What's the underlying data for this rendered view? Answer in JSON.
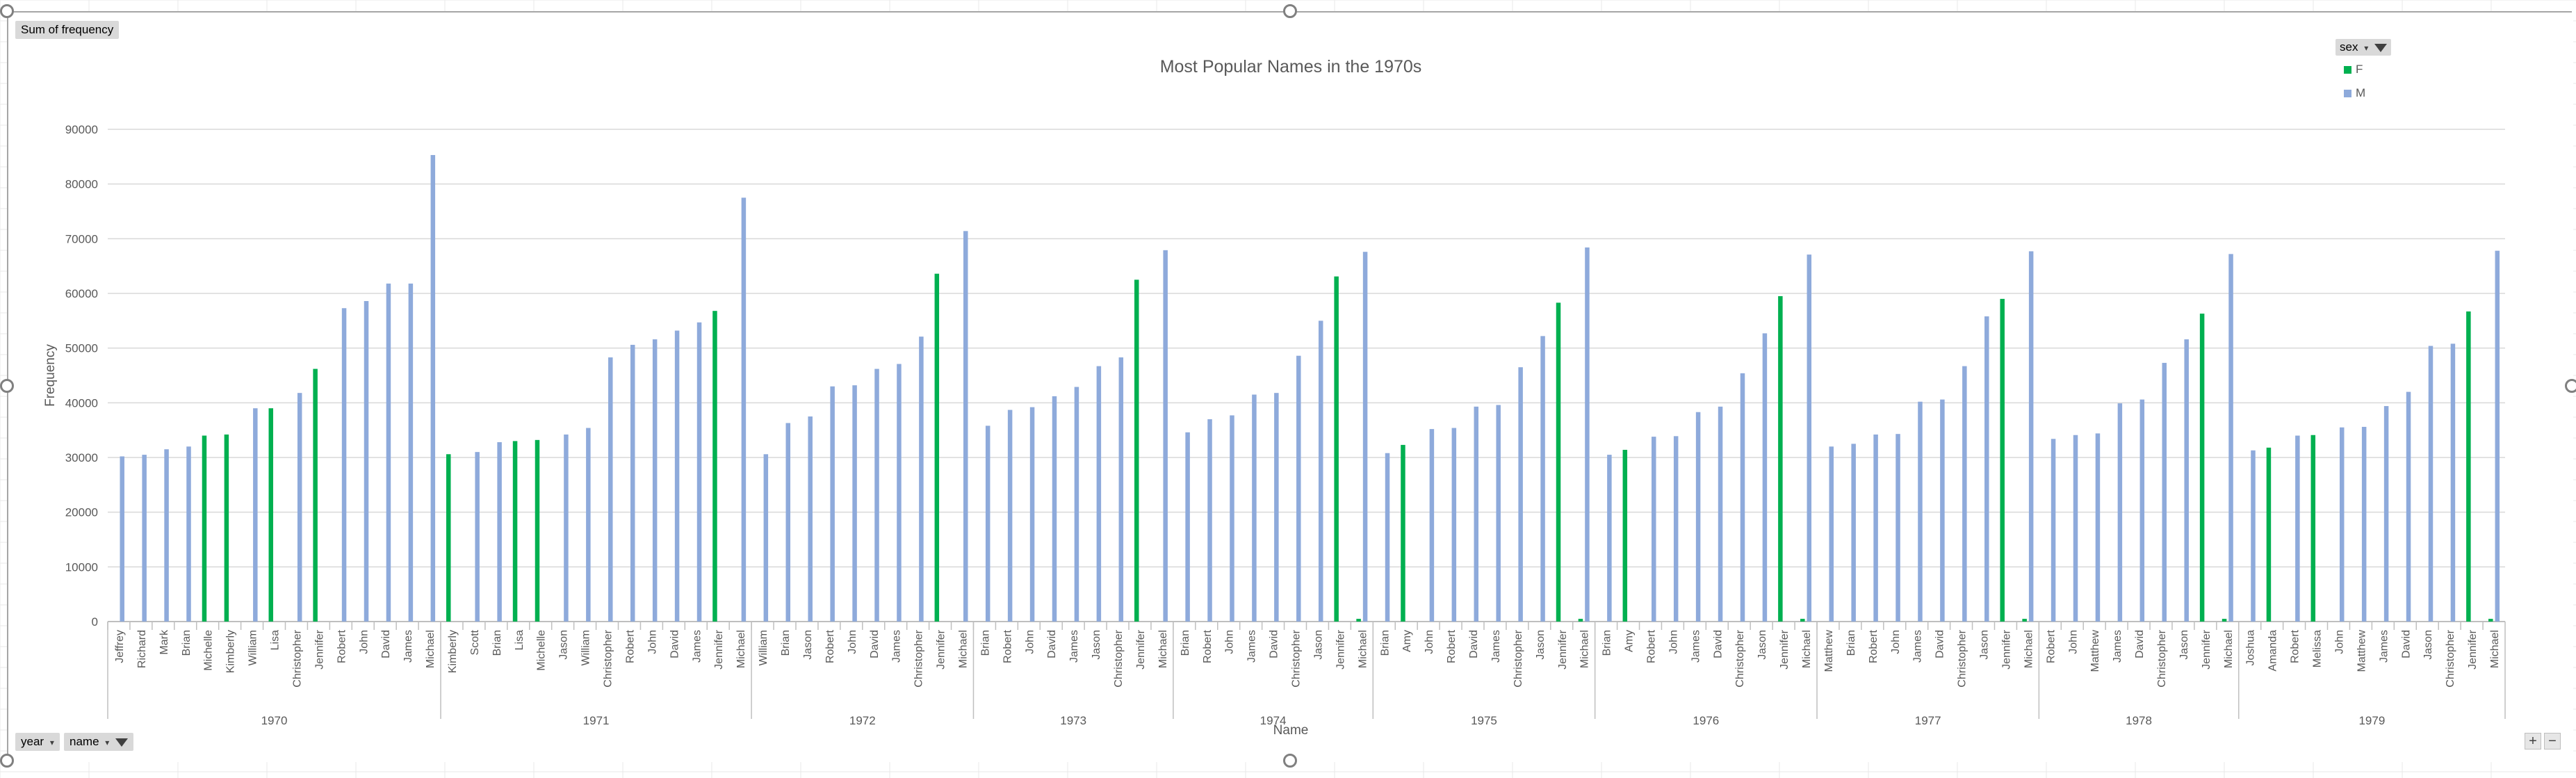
{
  "pivot": {
    "value_field": "Sum of frequency",
    "legend_field": "sex",
    "row_fields": [
      "year",
      "name"
    ]
  },
  "chart_data": {
    "type": "bar",
    "title": "Most Popular Names in the 1970s",
    "xlabel": "Name",
    "ylabel": "Frequency",
    "ylim": [
      0,
      90000
    ],
    "yticks": [
      0,
      10000,
      20000,
      30000,
      40000,
      50000,
      60000,
      70000,
      80000,
      90000
    ],
    "grid": true,
    "legend_position": "top-right",
    "series": [
      {
        "name": "F",
        "color": "#00b050"
      },
      {
        "name": "M",
        "color": "#8eaadb"
      }
    ],
    "groups": [
      {
        "year": "1970",
        "items": [
          {
            "name": "Jeffrey",
            "M": 30200
          },
          {
            "name": "Richard",
            "M": 30500
          },
          {
            "name": "Mark",
            "M": 31500
          },
          {
            "name": "Brian",
            "M": 32000
          },
          {
            "name": "Michelle",
            "F": 34000
          },
          {
            "name": "Kimberly",
            "F": 34200
          },
          {
            "name": "William",
            "M": 39000
          },
          {
            "name": "Lisa",
            "F": 39000
          },
          {
            "name": "Christopher",
            "M": 41800
          },
          {
            "name": "Jennifer",
            "F": 46200
          },
          {
            "name": "Robert",
            "M": 57300
          },
          {
            "name": "John",
            "M": 58600
          },
          {
            "name": "David",
            "M": 61800
          },
          {
            "name": "James",
            "M": 61800
          },
          {
            "name": "Michael",
            "M": 85300
          }
        ]
      },
      {
        "year": "1971",
        "items": [
          {
            "name": "Kimberly",
            "F": 30600
          },
          {
            "name": "Scott",
            "M": 31000
          },
          {
            "name": "Brian",
            "M": 32800
          },
          {
            "name": "Lisa",
            "F": 33000
          },
          {
            "name": "Michelle",
            "F": 33200
          },
          {
            "name": "Jason",
            "M": 34200
          },
          {
            "name": "William",
            "M": 35400
          },
          {
            "name": "Christopher",
            "M": 48300
          },
          {
            "name": "Robert",
            "M": 50600
          },
          {
            "name": "John",
            "M": 51600
          },
          {
            "name": "David",
            "M": 53200
          },
          {
            "name": "James",
            "M": 54700
          },
          {
            "name": "Jennifer",
            "F": 56800
          },
          {
            "name": "Michael",
            "M": 77500
          }
        ]
      },
      {
        "year": "1972",
        "items": [
          {
            "name": "William",
            "M": 30600
          },
          {
            "name": "Brian",
            "M": 36300
          },
          {
            "name": "Jason",
            "M": 37500
          },
          {
            "name": "Robert",
            "M": 43000
          },
          {
            "name": "John",
            "M": 43200
          },
          {
            "name": "David",
            "M": 46200
          },
          {
            "name": "James",
            "M": 47100
          },
          {
            "name": "Christopher",
            "M": 52100
          },
          {
            "name": "Jennifer",
            "F": 63600
          },
          {
            "name": "Michael",
            "M": 71400
          }
        ]
      },
      {
        "year": "1973",
        "items": [
          {
            "name": "Brian",
            "M": 35800
          },
          {
            "name": "Robert",
            "M": 38700
          },
          {
            "name": "John",
            "M": 39200
          },
          {
            "name": "David",
            "M": 41200
          },
          {
            "name": "James",
            "M": 42900
          },
          {
            "name": "Jason",
            "M": 46700
          },
          {
            "name": "Christopher",
            "M": 48300
          },
          {
            "name": "Jennifer",
            "F": 62500
          },
          {
            "name": "Michael",
            "M": 67900
          }
        ]
      },
      {
        "year": "1974",
        "items": [
          {
            "name": "Brian",
            "M": 34600
          },
          {
            "name": "Robert",
            "M": 37000
          },
          {
            "name": "John",
            "M": 37700
          },
          {
            "name": "James",
            "M": 41500
          },
          {
            "name": "David",
            "M": 41800
          },
          {
            "name": "Christopher",
            "M": 48600
          },
          {
            "name": "Jason",
            "M": 55000
          },
          {
            "name": "Jennifer",
            "F": 63100
          },
          {
            "name": "Michael",
            "M": 67600,
            "F": 500
          }
        ]
      },
      {
        "year": "1975",
        "items": [
          {
            "name": "Brian",
            "M": 30800
          },
          {
            "name": "Amy",
            "F": 32300
          },
          {
            "name": "John",
            "M": 35200
          },
          {
            "name": "Robert",
            "M": 35400
          },
          {
            "name": "David",
            "M": 39300
          },
          {
            "name": "James",
            "M": 39600
          },
          {
            "name": "Christopher",
            "M": 46500
          },
          {
            "name": "Jason",
            "M": 52200
          },
          {
            "name": "Jennifer",
            "F": 58300
          },
          {
            "name": "Michael",
            "M": 68400,
            "F": 500
          }
        ]
      },
      {
        "year": "1976",
        "items": [
          {
            "name": "Brian",
            "M": 30500
          },
          {
            "name": "Amy",
            "F": 31400
          },
          {
            "name": "Robert",
            "M": 33800
          },
          {
            "name": "John",
            "M": 33900
          },
          {
            "name": "James",
            "M": 38300
          },
          {
            "name": "David",
            "M": 39300
          },
          {
            "name": "Christopher",
            "M": 45400
          },
          {
            "name": "Jason",
            "M": 52700
          },
          {
            "name": "Jennifer",
            "F": 59500
          },
          {
            "name": "Michael",
            "M": 67100,
            "F": 500
          }
        ]
      },
      {
        "year": "1977",
        "items": [
          {
            "name": "Matthew",
            "M": 32000
          },
          {
            "name": "Brian",
            "M": 32500
          },
          {
            "name": "Robert",
            "M": 34200
          },
          {
            "name": "John",
            "M": 34300
          },
          {
            "name": "James",
            "M": 40200
          },
          {
            "name": "David",
            "M": 40600
          },
          {
            "name": "Christopher",
            "M": 46700
          },
          {
            "name": "Jason",
            "M": 55800
          },
          {
            "name": "Jennifer",
            "F": 59000
          },
          {
            "name": "Michael",
            "M": 67700,
            "F": 500
          }
        ]
      },
      {
        "year": "1978",
        "items": [
          {
            "name": "Robert",
            "M": 33400
          },
          {
            "name": "John",
            "M": 34100
          },
          {
            "name": "Matthew",
            "M": 34400
          },
          {
            "name": "James",
            "M": 39900
          },
          {
            "name": "David",
            "M": 40600
          },
          {
            "name": "Christopher",
            "M": 47300
          },
          {
            "name": "Jason",
            "M": 51600
          },
          {
            "name": "Jennifer",
            "F": 56300
          },
          {
            "name": "Michael",
            "M": 67200,
            "F": 500
          }
        ]
      },
      {
        "year": "1979",
        "items": [
          {
            "name": "Joshua",
            "M": 31300
          },
          {
            "name": "Amanda",
            "F": 31800
          },
          {
            "name": "Robert",
            "M": 34000
          },
          {
            "name": "Melissa",
            "F": 34100
          },
          {
            "name": "John",
            "M": 35500
          },
          {
            "name": "Matthew",
            "M": 35600
          },
          {
            "name": "James",
            "M": 39400
          },
          {
            "name": "David",
            "M": 42000
          },
          {
            "name": "Jason",
            "M": 50400
          },
          {
            "name": "Christopher",
            "M": 50800
          },
          {
            "name": "Jennifer",
            "F": 56700
          },
          {
            "name": "Michael",
            "M": 67800,
            "F": 500
          }
        ]
      }
    ]
  }
}
